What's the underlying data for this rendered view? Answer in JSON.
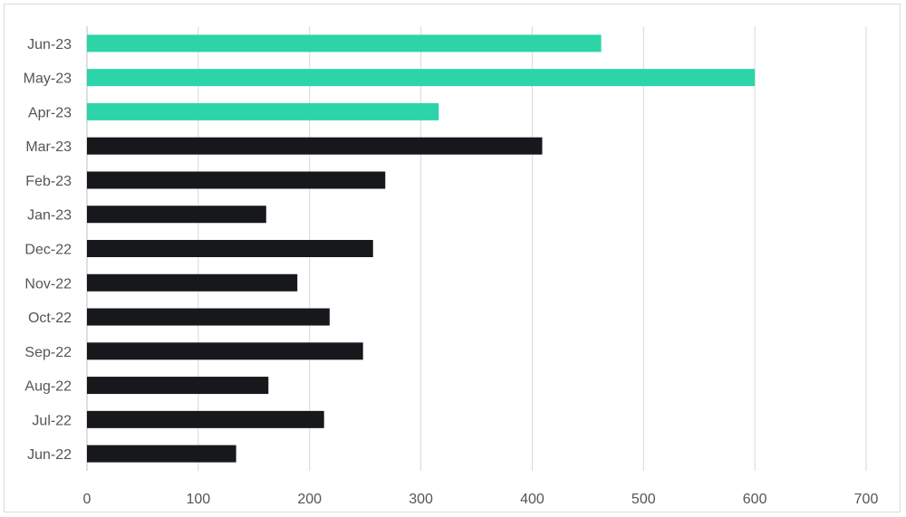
{
  "chart_data": {
    "type": "bar",
    "orientation": "horizontal",
    "title": "",
    "xlabel": "",
    "ylabel": "",
    "categories": [
      "Jun-23",
      "May-23",
      "Apr-23",
      "Mar-23",
      "Feb-23",
      "Jan-23",
      "Dec-22",
      "Nov-22",
      "Oct-22",
      "Sep-22",
      "Aug-22",
      "Jul-22",
      "Jun-22"
    ],
    "values": [
      462,
      600,
      316,
      409,
      268,
      161,
      257,
      189,
      218,
      248,
      163,
      213,
      134
    ],
    "bar_colors": [
      "#2dd4a8",
      "#2dd4a8",
      "#2dd4a8",
      "#16181c",
      "#16181c",
      "#16181c",
      "#16181c",
      "#16181c",
      "#16181c",
      "#16181c",
      "#16181c",
      "#16181c",
      "#16181c"
    ],
    "xlim": [
      0,
      700
    ],
    "xticks": [
      "0",
      "100",
      "200",
      "300",
      "400",
      "500",
      "600",
      "700"
    ],
    "grid": "vertical",
    "legend": "none",
    "colors": {
      "highlight": "#2dd4a8",
      "base": "#16181c",
      "gridline": "#d9d9d9",
      "text": "#555555"
    }
  }
}
